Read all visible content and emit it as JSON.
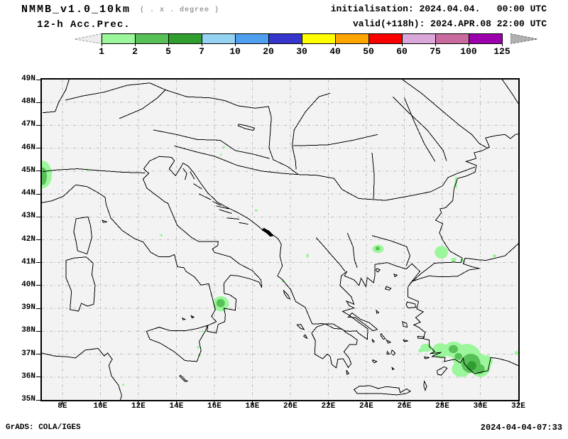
{
  "header": {
    "model_title": "NMMB_v1.0_10km",
    "grid_note": "( . x . degree )",
    "product": "12-h Acc.Prec.",
    "init_line": "initialisation: 2024.04.04.   00:00 UTC",
    "valid_line": "valid(+118h): 2024.APR.08 22:00 UTC"
  },
  "colorbar": {
    "tick_labels": [
      "1",
      "2",
      "5",
      "7",
      "10",
      "20",
      "30",
      "40",
      "50",
      "60",
      "75",
      "100",
      "125"
    ],
    "cell_colors": [
      "#9cf69c",
      "#57c057",
      "#2f9e2f",
      "#96d2f2",
      "#4f9ff0",
      "#3636cd",
      "#ffff00",
      "#ffa500",
      "#fa0000",
      "#d9a7d9",
      "#c96b9e",
      "#9c00ad"
    ],
    "left_arrow_color": "#ededed",
    "right_arrow_color": "#b0b0b0"
  },
  "map": {
    "background": "#f3f3f3",
    "grid_color": "#bdbdbd",
    "coast_color": "#000000",
    "lon_min": 6.92,
    "lon_max": 32.0,
    "lat_min": 35.0,
    "lat_max": 49.0,
    "lat_tick_labels": [
      "49N",
      "48N",
      "47N",
      "46N",
      "45N",
      "44N",
      "43N",
      "42N",
      "41N",
      "40N",
      "39N",
      "38N",
      "37N",
      "36N",
      "35N"
    ],
    "lon_tick_labels": [
      "8E",
      "10E",
      "12E",
      "14E",
      "16E",
      "18E",
      "20E",
      "22E",
      "24E",
      "26E",
      "28E",
      "30E",
      "32E"
    ],
    "precip_levels": [
      {
        "name": "light",
        "color": "#9cf69c"
      },
      {
        "name": "medium",
        "color": "#57c057"
      },
      {
        "name": "dark",
        "color": "#2f9e2f"
      }
    ],
    "precip_blobs": [
      {
        "lon": 6.95,
        "lat": 44.85,
        "rx": 0.5,
        "ry": 0.6,
        "level": 1
      },
      {
        "lon": 6.98,
        "lat": 44.78,
        "rx": 0.2,
        "ry": 0.38,
        "level": 2
      },
      {
        "lon": 9.3,
        "lat": 45.02,
        "rx": 0.07,
        "ry": 0.05,
        "level": 1
      },
      {
        "lon": 16.5,
        "lat": 46.05,
        "rx": 0.07,
        "ry": 0.05,
        "level": 1
      },
      {
        "lon": 16.35,
        "lat": 45.72,
        "rx": 0.05,
        "ry": 0.04,
        "level": 1
      },
      {
        "lon": 18.2,
        "lat": 43.28,
        "rx": 0.08,
        "ry": 0.05,
        "level": 1
      },
      {
        "lon": 13.2,
        "lat": 42.2,
        "rx": 0.07,
        "ry": 0.05,
        "level": 1
      },
      {
        "lon": 19.62,
        "lat": 40.2,
        "rx": 0.08,
        "ry": 0.06,
        "level": 1
      },
      {
        "lon": 20.9,
        "lat": 41.3,
        "rx": 0.07,
        "ry": 0.09,
        "level": 1
      },
      {
        "lon": 11.2,
        "lat": 35.66,
        "rx": 0.06,
        "ry": 0.05,
        "level": 1
      },
      {
        "lon": 15.37,
        "lat": 38.0,
        "rx": 0.06,
        "ry": 0.05,
        "level": 1
      },
      {
        "lon": 15.15,
        "lat": 37.3,
        "rx": 0.07,
        "ry": 0.06,
        "level": 1
      },
      {
        "lon": 15.2,
        "lat": 36.95,
        "rx": 0.07,
        "ry": 0.05,
        "level": 1
      },
      {
        "lon": 16.35,
        "lat": 39.2,
        "rx": 0.42,
        "ry": 0.33,
        "level": 1
      },
      {
        "lon": 16.33,
        "lat": 39.23,
        "rx": 0.22,
        "ry": 0.18,
        "level": 2
      },
      {
        "lon": 24.62,
        "lat": 41.6,
        "rx": 0.3,
        "ry": 0.18,
        "level": 1
      },
      {
        "lon": 24.6,
        "lat": 41.62,
        "rx": 0.12,
        "ry": 0.08,
        "level": 2
      },
      {
        "lon": 27.95,
        "lat": 41.45,
        "rx": 0.35,
        "ry": 0.28,
        "level": 1
      },
      {
        "lon": 28.6,
        "lat": 41.12,
        "rx": 0.14,
        "ry": 0.1,
        "level": 1
      },
      {
        "lon": 29.05,
        "lat": 41.1,
        "rx": 0.1,
        "ry": 0.08,
        "level": 1
      },
      {
        "lon": 30.75,
        "lat": 41.3,
        "rx": 0.1,
        "ry": 0.07,
        "level": 1
      },
      {
        "lon": 28.72,
        "lat": 44.5,
        "rx": 0.07,
        "ry": 0.28,
        "level": 1
      },
      {
        "lon": 31.9,
        "lat": 37.05,
        "rx": 0.1,
        "ry": 0.09,
        "level": 1
      },
      {
        "lon": 26.85,
        "lat": 37.15,
        "rx": 0.12,
        "ry": 0.08,
        "level": 1
      },
      {
        "lon": 27.15,
        "lat": 37.28,
        "rx": 0.3,
        "ry": 0.18,
        "level": 1
      },
      {
        "lon": 27.9,
        "lat": 37.15,
        "rx": 0.45,
        "ry": 0.33,
        "level": 1
      },
      {
        "lon": 28.6,
        "lat": 37.2,
        "rx": 0.5,
        "ry": 0.35,
        "level": 1
      },
      {
        "lon": 29.3,
        "lat": 36.85,
        "rx": 0.75,
        "ry": 0.6,
        "level": 1
      },
      {
        "lon": 30.0,
        "lat": 36.5,
        "rx": 0.55,
        "ry": 0.5,
        "level": 1
      },
      {
        "lon": 29.0,
        "lat": 36.35,
        "rx": 0.5,
        "ry": 0.35,
        "level": 1
      },
      {
        "lon": 30.35,
        "lat": 36.7,
        "rx": 0.3,
        "ry": 0.25,
        "level": 1
      },
      {
        "lon": 28.58,
        "lat": 37.22,
        "rx": 0.24,
        "ry": 0.18,
        "level": 2
      },
      {
        "lon": 28.85,
        "lat": 36.9,
        "rx": 0.2,
        "ry": 0.15,
        "level": 2
      },
      {
        "lon": 29.5,
        "lat": 36.6,
        "rx": 0.5,
        "ry": 0.42,
        "level": 2
      },
      {
        "lon": 29.95,
        "lat": 36.35,
        "rx": 0.28,
        "ry": 0.22,
        "level": 2
      },
      {
        "lon": 29.55,
        "lat": 36.5,
        "rx": 0.24,
        "ry": 0.2,
        "level": 3
      }
    ]
  },
  "footer": {
    "credit": "GrADS: COLA/IGES",
    "timestamp": "2024-04-04-07:33"
  }
}
